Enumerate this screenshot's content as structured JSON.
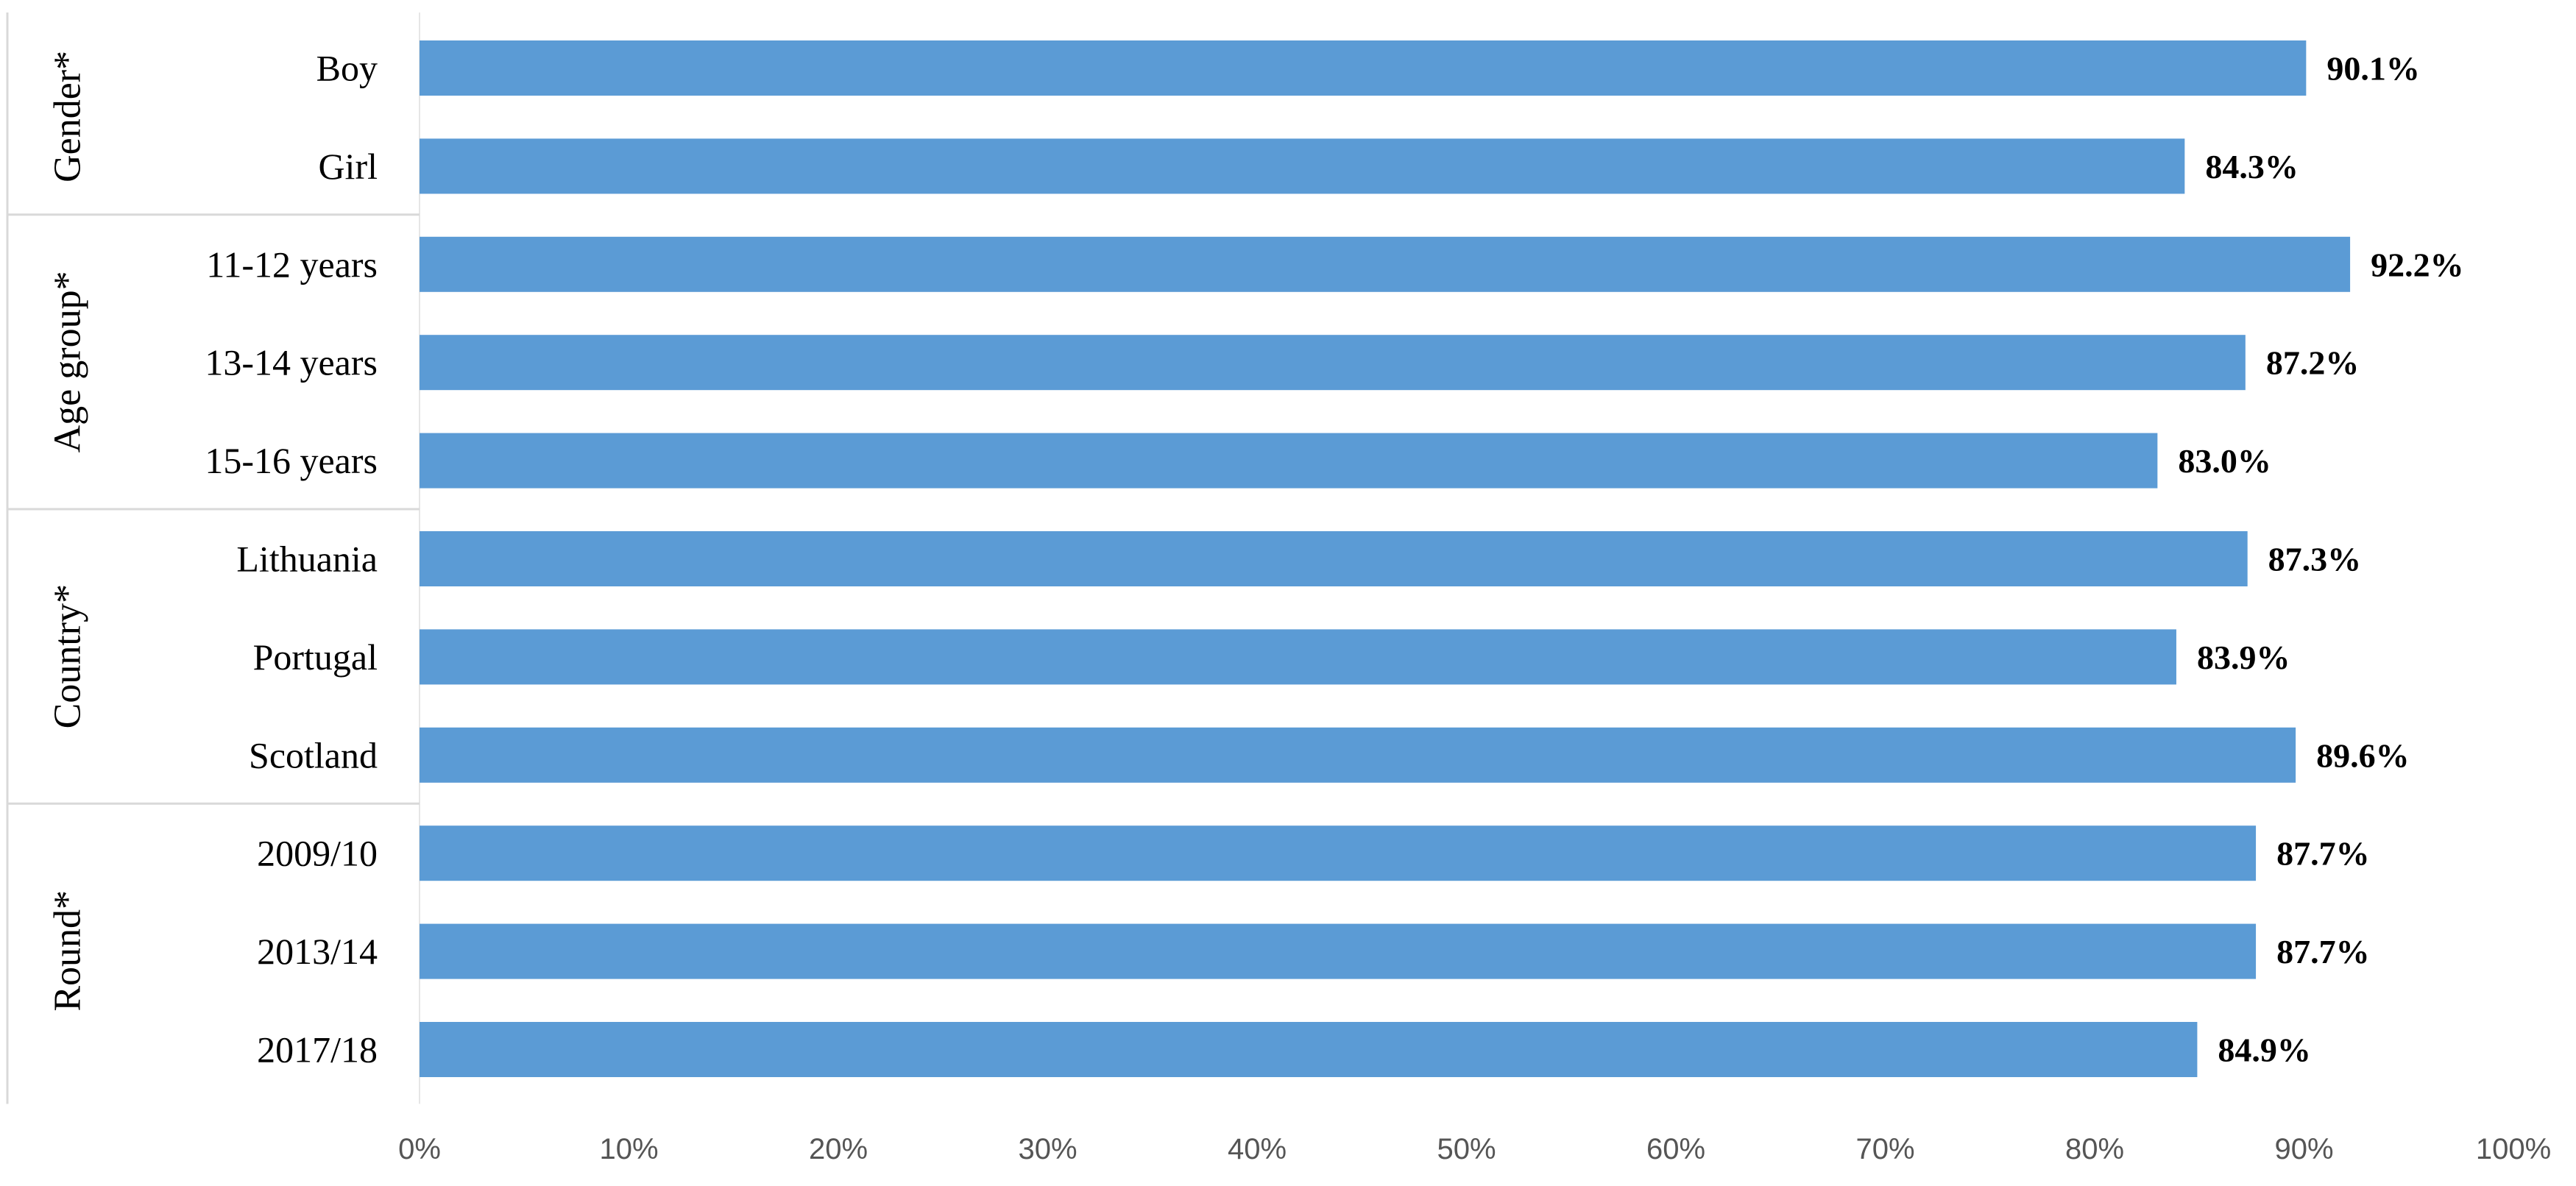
{
  "chart_data": {
    "type": "bar",
    "orientation": "horizontal",
    "title": "",
    "xlabel": "",
    "ylabel": "",
    "xlim": [
      0,
      100
    ],
    "x_ticks": [
      "0%",
      "10%",
      "20%",
      "30%",
      "40%",
      "50%",
      "60%",
      "70%",
      "80%",
      "90%",
      "100%"
    ],
    "grid": false,
    "bar_color": "#5b9bd5",
    "groups": [
      {
        "name": "Gender*",
        "categories": [
          "Boy",
          "Girl"
        ],
        "values": [
          90.1,
          84.3
        ],
        "value_labels": [
          "90.1%",
          "84.3%"
        ]
      },
      {
        "name": "Age group*",
        "categories": [
          "11-12 years",
          "13-14 years",
          "15-16 years"
        ],
        "values": [
          92.2,
          87.2,
          83.0
        ],
        "value_labels": [
          "92.2%",
          "87.2%",
          "83.0%"
        ]
      },
      {
        "name": "Country*",
        "categories": [
          "Lithuania",
          "Portugal",
          "Scotland"
        ],
        "values": [
          87.3,
          83.9,
          89.6
        ],
        "value_labels": [
          "87.3%",
          "83.9%",
          "89.6%"
        ]
      },
      {
        "name": "Round*",
        "categories": [
          "2009/10",
          "2013/14",
          "2017/18"
        ],
        "values": [
          87.7,
          87.7,
          84.9
        ],
        "value_labels": [
          "87.7%",
          "87.7%",
          "84.9%"
        ]
      }
    ]
  }
}
